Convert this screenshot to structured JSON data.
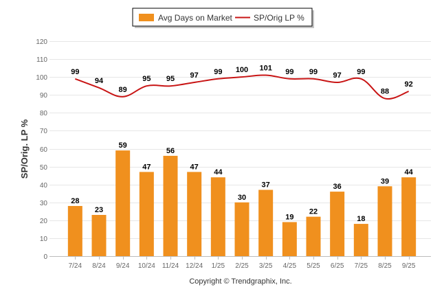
{
  "chart_data": {
    "type": "bar+line",
    "categories": [
      "7/24",
      "8/24",
      "9/24",
      "10/24",
      "11/24",
      "12/24",
      "1/25",
      "2/25",
      "3/25",
      "4/25",
      "5/25",
      "6/25",
      "7/25",
      "8/25",
      "9/25"
    ],
    "series": [
      {
        "name": "Avg Days on Market",
        "type": "bar",
        "color": "#f0901e",
        "values": [
          28,
          23,
          59,
          47,
          56,
          47,
          44,
          30,
          37,
          19,
          22,
          36,
          18,
          39,
          44
        ]
      },
      {
        "name": "SP/Orig LP %",
        "type": "line",
        "color": "#c81414",
        "values": [
          99,
          94,
          89,
          95,
          95,
          97,
          99,
          100,
          101,
          99,
          99,
          97,
          99,
          88,
          92
        ]
      }
    ],
    "yticks": [
      0,
      10,
      20,
      30,
      40,
      50,
      60,
      70,
      80,
      90,
      100,
      110,
      120
    ],
    "ylim": [
      0,
      120
    ],
    "ylabel": "SP/Orig. LP %",
    "xlabel": "",
    "legend_position": "top-center",
    "grid": true,
    "credit": "Copyright © Trendgraphix, Inc."
  }
}
